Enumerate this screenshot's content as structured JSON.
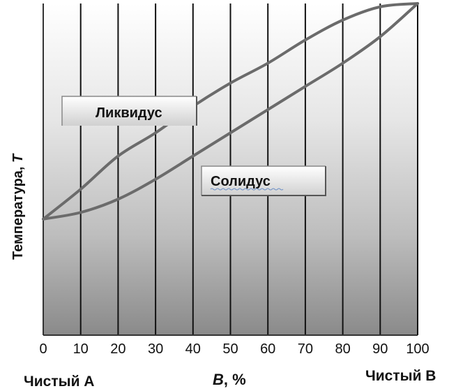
{
  "chart_data": {
    "type": "line",
    "title": "",
    "xlabel": "B, %",
    "xlabel_var": "B",
    "xlabel_rest": ", %",
    "ylabel": "Температура, T",
    "ylabel_text": "Температура, ",
    "ylabel_var": "T",
    "x_ticks": [
      "0",
      "10",
      "20",
      "30",
      "40",
      "50",
      "60",
      "70",
      "80",
      "90",
      "100"
    ],
    "xlim": [
      0,
      100
    ],
    "ylim": [
      0,
      100
    ],
    "grid": true,
    "corner_left": "Чистый A",
    "corner_right": "Чистый B",
    "series": [
      {
        "name": "Ликвидус",
        "x": [
          0,
          10,
          20,
          30,
          40,
          50,
          60,
          70,
          80,
          90,
          100
        ],
        "y": [
          35,
          44,
          54,
          61,
          69,
          76,
          82,
          89,
          95,
          99,
          100
        ]
      },
      {
        "name": "Солидус",
        "x": [
          0,
          10,
          20,
          30,
          40,
          50,
          60,
          70,
          80,
          90,
          100
        ],
        "y": [
          35,
          37,
          41,
          47,
          54,
          61,
          68,
          75,
          82,
          90,
          100
        ]
      }
    ],
    "annotations": [
      {
        "text": "Ликвидус",
        "series": "Ликвидус"
      },
      {
        "text": "Солидус",
        "series": "Солидус"
      }
    ],
    "line_color": "#6b6b6b",
    "box_color": "#d7d7d7"
  }
}
